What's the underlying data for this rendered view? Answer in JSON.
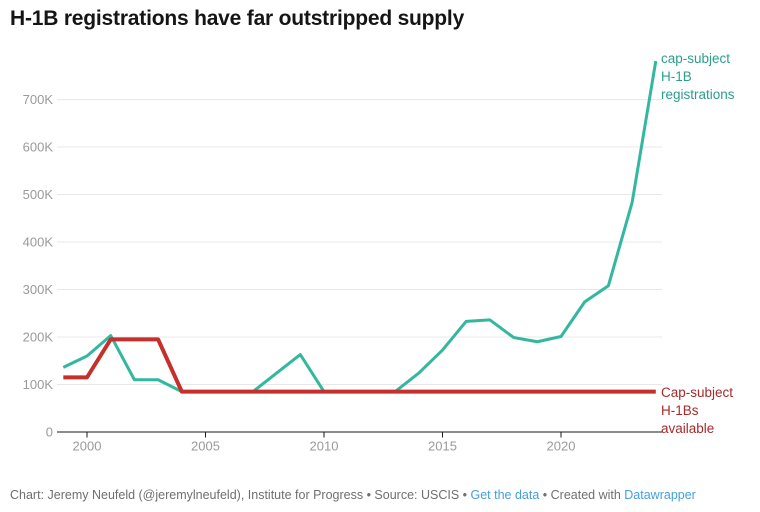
{
  "title": "H-1B registrations have far outstripped supply",
  "colors": {
    "registrations_line": "#33b7a0",
    "registrations_label": "#2b9e8a",
    "available_line": "#c5302c",
    "available_label": "#a62a2b",
    "gridline": "#e8e8e8",
    "axis": "#1a1a1a",
    "tick_label": "#9a9a9c",
    "footer_text": "#6f6f6f",
    "link": "#459fdb",
    "background": "#ffffff"
  },
  "series_labels": {
    "registrations": [
      "cap-subject",
      "H-1B",
      "registrations"
    ],
    "available": [
      "Cap-subject",
      "H-1Bs",
      "available"
    ]
  },
  "footer": {
    "credit": "Chart: Jeremy Neufeld (@jeremylneufeld), Institute for Progress • Source: USCIS • ",
    "get_data_link": "Get the data",
    "created_with": " • Created with ",
    "datawrapper_link": "Datawrapper"
  },
  "chart_data": {
    "type": "line",
    "title": "H-1B registrations have far outstripped supply",
    "xlabel": "",
    "ylabel": "",
    "xlim": [
      1999,
      2024
    ],
    "ylim": [
      0,
      790000
    ],
    "grid": "horizontal",
    "legend_position": "right-edge-annotations",
    "x": [
      1999,
      2000,
      2001,
      2002,
      2003,
      2004,
      2005,
      2006,
      2007,
      2008,
      2009,
      2010,
      2011,
      2012,
      2013,
      2014,
      2015,
      2016,
      2017,
      2018,
      2019,
      2020,
      2021,
      2022,
      2023,
      2024
    ],
    "series": [
      {
        "name": "cap-subject H-1B registrations",
        "color": "#33b7a0",
        "values": [
          136000,
          160000,
          203000,
          110000,
          110000,
          85000,
          85000,
          85000,
          85000,
          124000,
          163000,
          85000,
          85000,
          85000,
          85000,
          124000,
          172500,
          233000,
          236000,
          199000,
          190000,
          201000,
          274000,
          308000,
          483000,
          781000
        ]
      },
      {
        "name": "Cap-subject H-1Bs available",
        "color": "#c5302c",
        "values": [
          115000,
          115000,
          195000,
          195000,
          195000,
          85000,
          85000,
          85000,
          85000,
          85000,
          85000,
          85000,
          85000,
          85000,
          85000,
          85000,
          85000,
          85000,
          85000,
          85000,
          85000,
          85000,
          85000,
          85000,
          85000,
          85000
        ]
      }
    ],
    "xticks": [
      2000,
      2005,
      2010,
      2015,
      2020
    ],
    "yticks": [
      0,
      100000,
      200000,
      300000,
      400000,
      500000,
      600000,
      700000
    ],
    "ytick_labels": [
      "0",
      "100K",
      "200K",
      "300K",
      "400K",
      "500K",
      "600K",
      "700K"
    ]
  }
}
